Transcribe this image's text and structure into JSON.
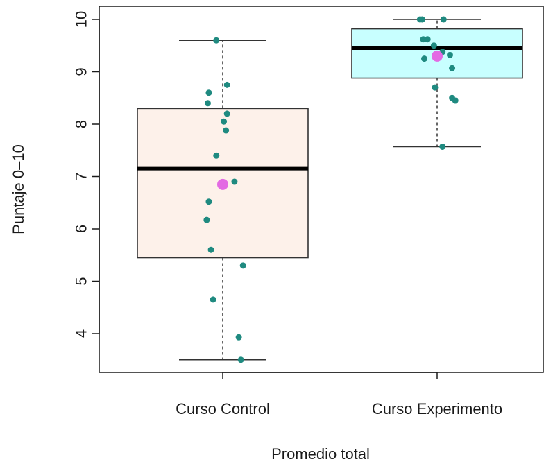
{
  "chart_data": {
    "type": "boxplot",
    "xlabel": "Promedio total",
    "ylabel": "Puntaje 0–10",
    "ylim": [
      3.3,
      10.2
    ],
    "yticks": [
      4,
      5,
      6,
      7,
      8,
      9,
      10
    ],
    "grid": false,
    "legend": "none",
    "colors": {
      "point": "#1f8a80",
      "mean": "#e36ae3",
      "median": "#000000",
      "whisker": "#333333"
    },
    "groups": [
      {
        "label": "Curso Control",
        "box_fill": "#fdf1ea",
        "whisker_low": 3.5,
        "q1": 5.45,
        "median": 7.15,
        "q3": 8.3,
        "whisker_high": 9.6,
        "mean": 6.85,
        "points": [
          {
            "jitter": -0.06,
            "y": 9.6
          },
          {
            "jitter": -0.13,
            "y": 8.6
          },
          {
            "jitter": 0.04,
            "y": 8.75
          },
          {
            "jitter": -0.14,
            "y": 8.4
          },
          {
            "jitter": 0.04,
            "y": 8.2
          },
          {
            "jitter": 0.01,
            "y": 8.05
          },
          {
            "jitter": 0.03,
            "y": 7.88
          },
          {
            "jitter": -0.06,
            "y": 7.4
          },
          {
            "jitter": 0.11,
            "y": 6.9
          },
          {
            "jitter": -0.13,
            "y": 6.52
          },
          {
            "jitter": -0.15,
            "y": 6.17
          },
          {
            "jitter": -0.11,
            "y": 5.6
          },
          {
            "jitter": 0.19,
            "y": 5.3
          },
          {
            "jitter": -0.09,
            "y": 4.65
          },
          {
            "jitter": 0.15,
            "y": 3.93
          },
          {
            "jitter": 0.17,
            "y": 3.5
          }
        ]
      },
      {
        "label": "Curso Experimento",
        "box_fill": "#c8ffff",
        "whisker_low": 7.57,
        "q1": 8.88,
        "median": 9.45,
        "q3": 9.82,
        "whisker_high": 10.0,
        "mean": 9.3,
        "points": [
          {
            "jitter": -0.16,
            "y": 10.0
          },
          {
            "jitter": -0.14,
            "y": 10.0
          },
          {
            "jitter": 0.06,
            "y": 10.0
          },
          {
            "jitter": -0.13,
            "y": 9.62
          },
          {
            "jitter": -0.09,
            "y": 9.62
          },
          {
            "jitter": -0.03,
            "y": 9.5
          },
          {
            "jitter": 0.05,
            "y": 9.38
          },
          {
            "jitter": 0.12,
            "y": 9.32
          },
          {
            "jitter": -0.12,
            "y": 9.25
          },
          {
            "jitter": 0.14,
            "y": 9.07
          },
          {
            "jitter": -0.02,
            "y": 8.7
          },
          {
            "jitter": 0.14,
            "y": 8.5
          },
          {
            "jitter": 0.17,
            "y": 8.45
          },
          {
            "jitter": 0.05,
            "y": 7.57
          }
        ]
      }
    ]
  }
}
